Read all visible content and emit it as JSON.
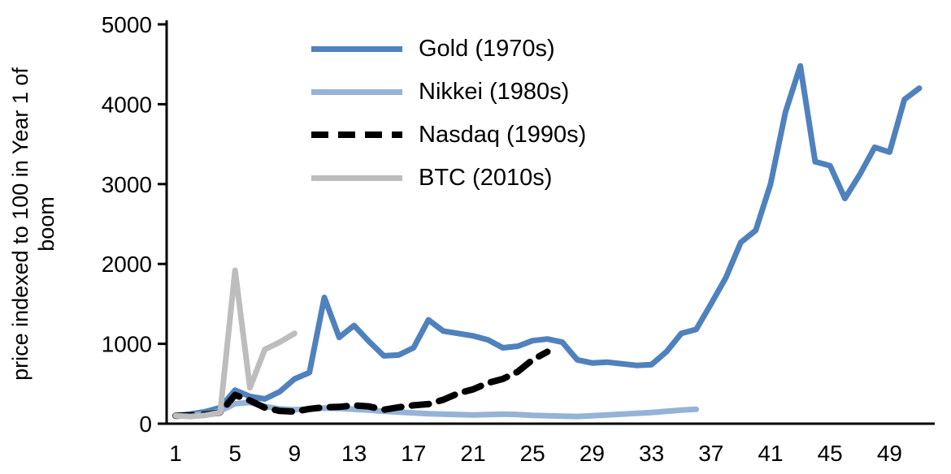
{
  "chart_data": {
    "type": "line",
    "title": "",
    "xlabel": "",
    "ylabel": "price indexed to 100 in Year 1 of boom",
    "ylabel_lines": [
      "price indexed to 100 in Year 1 of",
      "boom"
    ],
    "ylim": [
      0,
      5000
    ],
    "yticks": [
      0,
      1000,
      2000,
      3000,
      4000,
      5000
    ],
    "xlim": [
      1,
      52
    ],
    "xticks": [
      1,
      5,
      9,
      13,
      17,
      21,
      25,
      29,
      33,
      37,
      41,
      45,
      49
    ],
    "grid": false,
    "legend_position": "top-left-inside",
    "series": [
      {
        "name": "Gold (1970s)",
        "color": "#4f81bd",
        "style": "solid",
        "width": 7,
        "x_start": 1,
        "values": [
          100,
          120,
          150,
          200,
          420,
          340,
          310,
          400,
          560,
          640,
          1580,
          1080,
          1230,
          1030,
          850,
          860,
          950,
          1300,
          1160,
          1130,
          1100,
          1050,
          950,
          970,
          1040,
          1060,
          1020,
          800,
          760,
          770,
          750,
          730,
          740,
          900,
          1130,
          1180,
          1500,
          1830,
          2270,
          2420,
          3000,
          3900,
          4480,
          3280,
          3230,
          2820,
          3120,
          3460,
          3400,
          4060,
          4200
        ]
      },
      {
        "name": "Nikkei (1980s)",
        "color": "#95b3d7",
        "style": "solid",
        "width": 7,
        "x_start": 1,
        "values": [
          100,
          105,
          120,
          160,
          250,
          265,
          215,
          185,
          175,
          185,
          195,
          190,
          180,
          170,
          155,
          145,
          135,
          125,
          120,
          115,
          110,
          115,
          120,
          115,
          105,
          100,
          95,
          90,
          100,
          110,
          120,
          130,
          140,
          155,
          170,
          180
        ]
      },
      {
        "name": "Nasdaq (1990s)",
        "color": "#000000",
        "style": "dashed",
        "width": 8,
        "x_start": 1,
        "values": [
          100,
          105,
          115,
          140,
          360,
          290,
          200,
          160,
          150,
          185,
          205,
          210,
          230,
          215,
          175,
          205,
          230,
          245,
          300,
          380,
          430,
          510,
          560,
          650,
          800,
          900
        ]
      },
      {
        "name": "BTC (2010s)",
        "color": "#bdbdbd",
        "style": "solid",
        "width": 7,
        "x_start": 1,
        "values": [
          100,
          90,
          105,
          140,
          1920,
          450,
          930,
          1020,
          1130
        ]
      }
    ]
  }
}
